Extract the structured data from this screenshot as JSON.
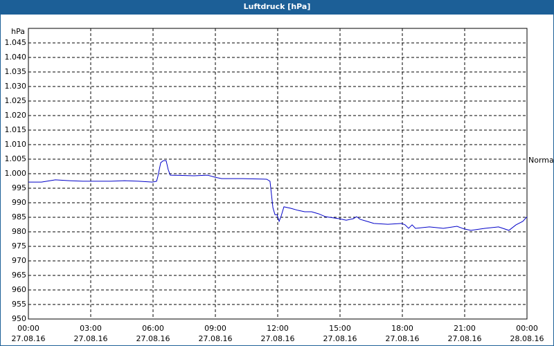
{
  "chart_data": {
    "type": "line",
    "title": "Luftdruck [hPa]",
    "y_label": "hPa",
    "xlim": [
      0,
      24
    ],
    "ylim": [
      950,
      1050
    ],
    "grid": true,
    "xticks": [
      {
        "value": 0,
        "label": "00:00"
      },
      {
        "value": 3,
        "label": "03:00"
      },
      {
        "value": 6,
        "label": "06:00"
      },
      {
        "value": 9,
        "label": "09:00"
      },
      {
        "value": 12,
        "label": "12:00"
      },
      {
        "value": 15,
        "label": "15:00"
      },
      {
        "value": 18,
        "label": "18:00"
      },
      {
        "value": 21,
        "label": "21:00"
      },
      {
        "value": 24,
        "label": "00:00"
      }
    ],
    "xtick_dates": [
      "27.08.16",
      "27.08.16",
      "27.08.16",
      "27.08.16",
      "27.08.16",
      "27.08.16",
      "27.08.16",
      "27.08.16",
      "28.08.16"
    ],
    "yticks": [
      950,
      955,
      960,
      965,
      970,
      975,
      980,
      985,
      990,
      995,
      {
        "value": 1000,
        "label": "1.000"
      },
      {
        "value": 1005,
        "label": "1.005"
      },
      {
        "value": 1010,
        "label": "1.010"
      },
      {
        "value": 1015,
        "label": "1.015"
      },
      {
        "value": 1020,
        "label": "1.020"
      },
      {
        "value": 1025,
        "label": "1.025"
      },
      {
        "value": 1030,
        "label": "1.030"
      },
      {
        "value": 1035,
        "label": "1.035"
      },
      {
        "value": 1040,
        "label": "1.040"
      },
      {
        "value": 1045,
        "label": "1.045"
      }
    ],
    "reference": {
      "label": "Normal",
      "value": 1004.5
    },
    "x": [
      0,
      0.63,
      1.3,
      1.97,
      2.63,
      3.3,
      3.97,
      4.63,
      5.3,
      5.97,
      6.17,
      6.23,
      6.37,
      6.5,
      6.63,
      6.73,
      6.83,
      7.97,
      8.63,
      8.97,
      9.3,
      10.3,
      11.47,
      11.63,
      11.77,
      11.87,
      11.97,
      12.07,
      12.17,
      12.3,
      12.63,
      12.97,
      13.3,
      13.63,
      13.97,
      14.3,
      14.97,
      15.3,
      15.63,
      15.8,
      15.97,
      16.3,
      16.63,
      17.3,
      17.97,
      18.13,
      18.3,
      18.47,
      18.63,
      19.3,
      19.97,
      20.63,
      20.97,
      21.3,
      21.97,
      22.63,
      23.13,
      23.47,
      23.8,
      24
    ],
    "series": [
      {
        "color": "#0000c8",
        "values": [
          997.1,
          997.1,
          997.9,
          997.6,
          997.4,
          997.4,
          997.4,
          997.6,
          997.4,
          997.1,
          997.4,
          999.0,
          1003.8,
          1004.5,
          1004.5,
          1001.4,
          999.5,
          999.3,
          999.5,
          998.8,
          998.3,
          998.3,
          998.1,
          997.4,
          988.3,
          985.9,
          985.9,
          983.6,
          985.5,
          988.6,
          988.1,
          987.4,
          986.9,
          986.9,
          986.2,
          985.2,
          984.5,
          984.0,
          984.5,
          985.2,
          984.3,
          983.6,
          982.9,
          982.6,
          982.9,
          982.4,
          981.2,
          982.4,
          981.2,
          981.7,
          981.2,
          981.9,
          981.0,
          980.5,
          981.2,
          981.7,
          980.5,
          982.4,
          983.6,
          985.2
        ]
      }
    ]
  }
}
